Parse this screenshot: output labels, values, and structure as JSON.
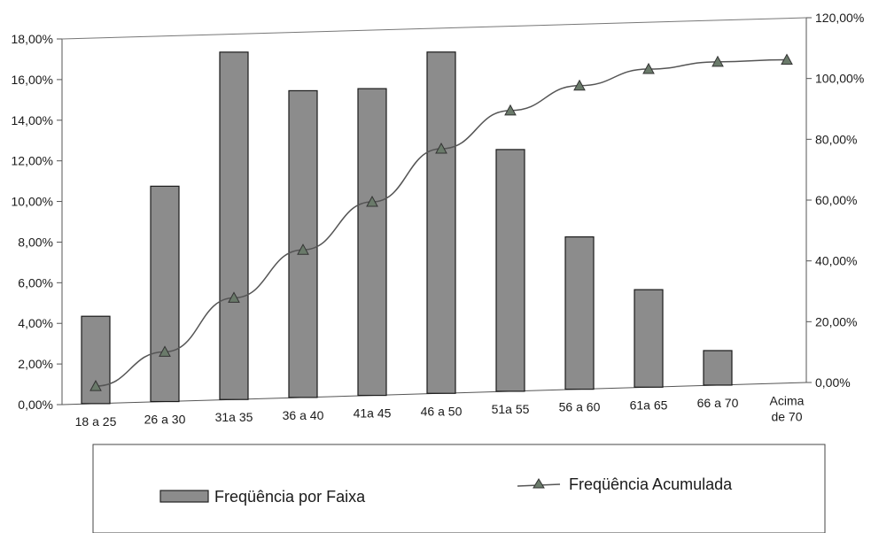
{
  "chart_data": {
    "type": "bar",
    "categories": [
      [
        "18 a 25"
      ],
      [
        "26 a 30"
      ],
      [
        "31a 35"
      ],
      [
        "36 a 40"
      ],
      [
        "41a 45"
      ],
      [
        "46 a 50"
      ],
      [
        "51a 55"
      ],
      [
        "56 a 60"
      ],
      [
        "61a 65"
      ],
      [
        "66 a 70"
      ],
      [
        "Acima",
        "de 70"
      ]
    ],
    "series": [
      {
        "name": "Freqüência por Faixa",
        "type": "bar",
        "axis": "left",
        "color": "#8c8c8c",
        "values": [
          4.3,
          10.6,
          17.1,
          15.1,
          15.1,
          16.8,
          11.9,
          7.5,
          4.8,
          1.7,
          0
        ]
      },
      {
        "name": "Freqüência Acumulada",
        "type": "line",
        "axis": "right",
        "color": "#555555",
        "marker": "triangle",
        "values": [
          4.3,
          14.9,
          32.0,
          47.1,
          62.2,
          79.0,
          90.9,
          98.4,
          103.2,
          104.9,
          104.9
        ]
      }
    ],
    "y_left": {
      "ylim": [
        0,
        18
      ],
      "tick_labels": [
        "0,00%",
        "2,00%",
        "4,00%",
        "6,00%",
        "8,00%",
        "10,00%",
        "12,00%",
        "14,00%",
        "16,00%",
        "18,00%"
      ]
    },
    "y_right": {
      "ylim": [
        0,
        120
      ],
      "tick_labels": [
        "0,00%",
        "20,00%",
        "40,00%",
        "60,00%",
        "80,00%",
        "100,00%",
        "120,00%"
      ]
    },
    "legend": {
      "placement": "bottom",
      "entries": [
        "Freqüência por Faixa",
        "Freqüência Acumulada"
      ]
    },
    "grid": false,
    "title": "",
    "xlabel": "",
    "ylabel": ""
  }
}
